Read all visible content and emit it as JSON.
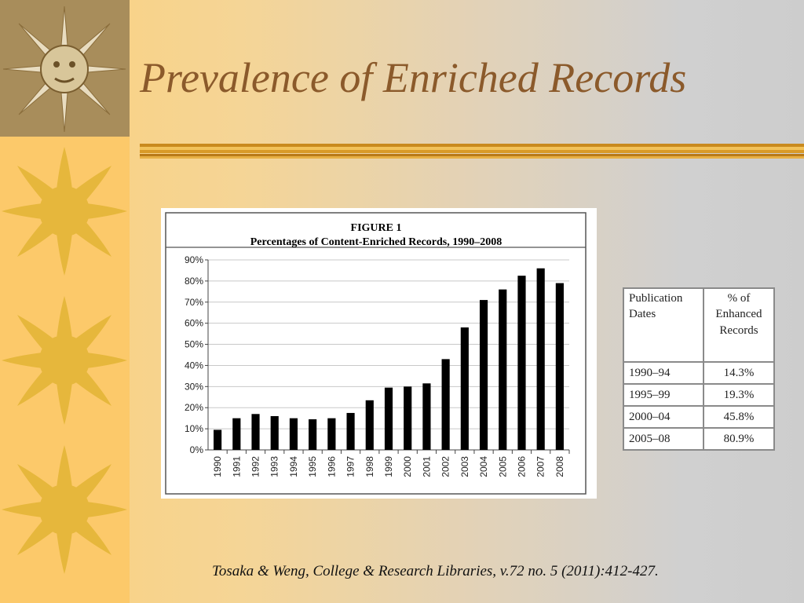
{
  "slide": {
    "title": "Prevalence of Enriched Records",
    "citation": "Tosaka & Weng, College & Research Libraries, v.72 no. 5 (2011):412-427."
  },
  "colors": {
    "title": "#8b5a2b",
    "left_strip": "#fcc96a",
    "sun": "#e6b73c",
    "bars": "#000000",
    "rule": "#d9a02a"
  },
  "chart_data": {
    "type": "bar",
    "title": "FIGURE 1",
    "subtitle": "Percentages of Content-Enriched Records, 1990–2008",
    "categories": [
      "1990",
      "1991",
      "1992",
      "1993",
      "1994",
      "1995",
      "1996",
      "1997",
      "1998",
      "1999",
      "2000",
      "2001",
      "2002",
      "2003",
      "2004",
      "2005",
      "2006",
      "2007",
      "2008"
    ],
    "values": [
      9.5,
      15,
      17,
      16,
      15,
      14.5,
      15,
      17.5,
      23.5,
      29.5,
      30,
      31.5,
      43,
      58,
      71,
      76,
      82.5,
      86,
      79
    ],
    "y_ticks": [
      "0%",
      "10%",
      "20%",
      "30%",
      "40%",
      "50%",
      "60%",
      "70%",
      "80%",
      "90%"
    ],
    "ylim": [
      0,
      90
    ],
    "xlabel": "",
    "ylabel": "",
    "grid": true
  },
  "table": {
    "headers": [
      "Publication Dates",
      "% of Enhanced Records"
    ],
    "rows": [
      [
        "1990–94",
        "14.3%"
      ],
      [
        "1995–99",
        "19.3%"
      ],
      [
        "2000–04",
        "45.8%"
      ],
      [
        "2005–08",
        "80.9%"
      ]
    ]
  }
}
